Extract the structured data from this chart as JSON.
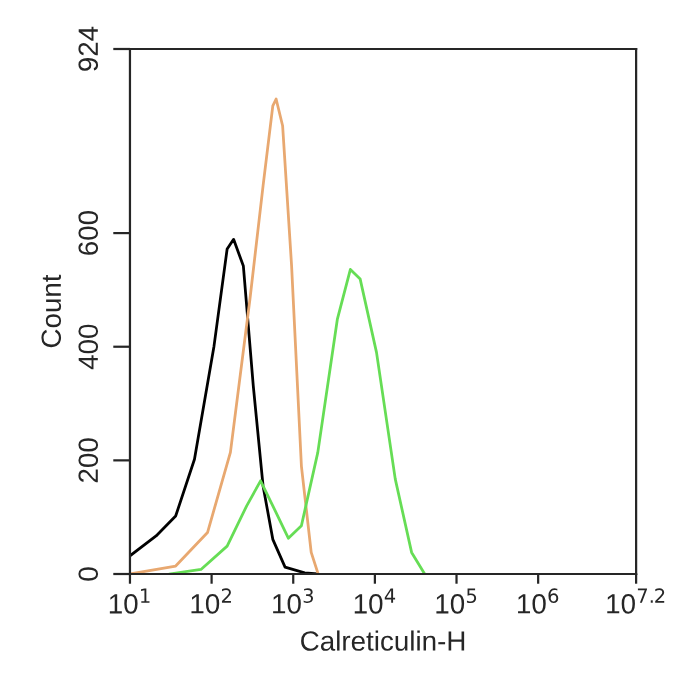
{
  "chart_data": {
    "type": "line",
    "xlabel": "Calreticulin-H",
    "ylabel": "Count",
    "log": "x",
    "xlim": [
      10,
      15848932
    ],
    "ylim": [
      0,
      924
    ],
    "xticks": [
      {
        "value": 10,
        "label": "10$^{1}$"
      },
      {
        "value": 100,
        "label": "10$^{2}$"
      },
      {
        "value": 1000,
        "label": "10$^{3}$"
      },
      {
        "value": 10000,
        "label": "10$^{4}$"
      },
      {
        "value": 100000,
        "label": "10$^{5}$"
      },
      {
        "value": 1000000,
        "label": "10$^{6}$"
      },
      {
        "value": 15848932,
        "label": "10$^{7.2}$"
      }
    ],
    "yticks": [
      0,
      200,
      400,
      600,
      924
    ],
    "grid": false,
    "legend": false,
    "marker": "none",
    "line_style": "solid",
    "series": [
      {
        "color": "#000000",
        "x": [
          10,
          20.9,
          36.3,
          61.7,
          107,
          155,
          186,
          245,
          324,
          427,
          562,
          794,
          1380,
          2000
        ],
        "values": [
          32,
          67,
          102,
          202,
          401,
          572,
          589,
          542,
          331,
          155,
          61,
          12,
          2,
          0
        ]
      },
      {
        "color": "#e8a870",
        "x": [
          10,
          36.3,
          89.1,
          170,
          295,
          427,
          562,
          617,
          741,
          955,
          1259,
          1660,
          2000
        ],
        "values": [
          0,
          14,
          73,
          214,
          484,
          683,
          824,
          836,
          789,
          542,
          190,
          38,
          2
        ]
      },
      {
        "color": "#66dd55",
        "x": [
          30.2,
          74.1,
          155,
          269,
          398,
          562,
          871,
          1259,
          2000,
          3467,
          5012,
          6607,
          10470,
          17780,
          28180,
          40740
        ],
        "values": [
          0,
          8,
          49,
          120,
          164,
          120,
          63,
          85,
          214,
          448,
          536,
          519,
          390,
          167,
          38,
          0
        ]
      }
    ]
  }
}
